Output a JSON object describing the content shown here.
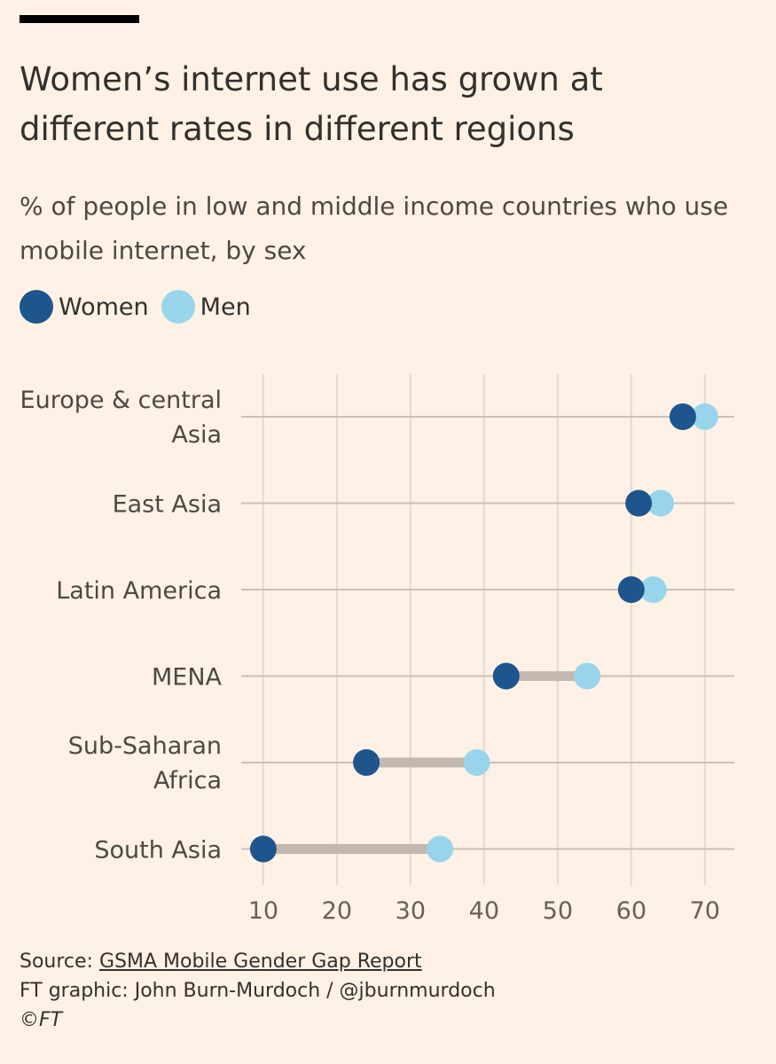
{
  "header": {
    "title": "Women’s internet use has grown at different rates in different regions",
    "subtitle": "% of people in low and middle income countries who use mobile internet, by sex"
  },
  "legend": {
    "items": [
      {
        "label": "Women",
        "color": "#1e558c"
      },
      {
        "label": "Men",
        "color": "#99d5ea"
      }
    ]
  },
  "chart_data": {
    "type": "dumbbell",
    "categories": [
      [
        "Europe & central",
        "Asia"
      ],
      [
        "East Asia"
      ],
      [
        "Latin America"
      ],
      [
        "MENA"
      ],
      [
        "Sub-Saharan",
        "Africa"
      ],
      [
        "South Asia"
      ]
    ],
    "series": [
      {
        "name": "Women",
        "color": "#1e558c",
        "values": [
          67,
          61,
          60,
          43,
          24,
          10
        ]
      },
      {
        "name": "Men",
        "color": "#99d5ea",
        "values": [
          70,
          64,
          63,
          54,
          39,
          34
        ]
      }
    ],
    "xlim": [
      7,
      74
    ],
    "xticks": [
      10,
      20,
      30,
      40,
      50,
      60,
      70
    ],
    "grid": true
  },
  "footer": {
    "source_prefix": "Source: ",
    "source_link": "GSMA Mobile Gender Gap Report",
    "credit": "FT graphic: John Burn-Murdoch / @jburnmurdoch",
    "copyright": "©FT"
  }
}
